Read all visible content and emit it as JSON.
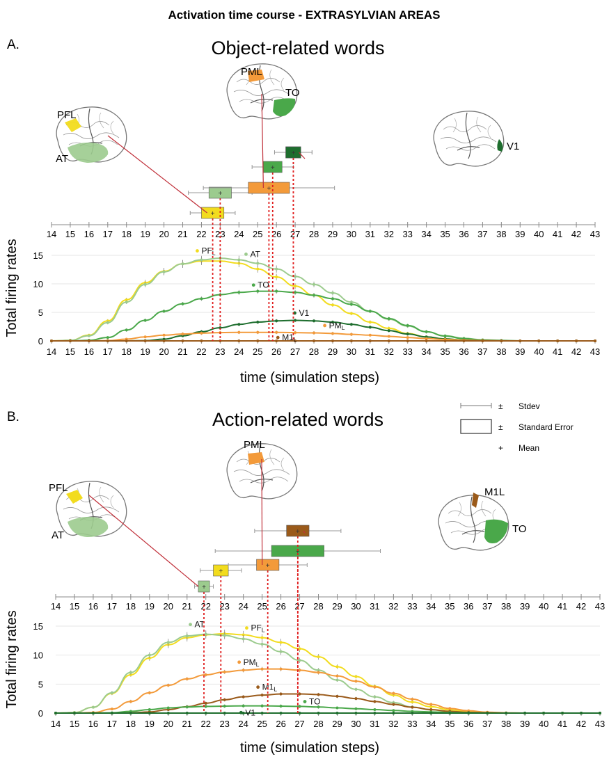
{
  "figure_title": "Activation time course - EXTRASYLVIAN AREAS",
  "colors": {
    "PF": "#f2dc1e",
    "AT": "#9ccb8e",
    "TO": "#4aa84a",
    "V1": "#1e6e2e",
    "PM": "#f39a3a",
    "M1": "#9a5a1a",
    "link": "#c0303a",
    "dotted": "#e02020"
  },
  "legend": {
    "stdev": "Stdev",
    "se": "Standard Error",
    "mean": "Mean",
    "pm": "±",
    "plus": "+"
  },
  "panels": [
    {
      "letter": "A.",
      "subtitle": "Object-related words",
      "ylabel": "Total firing rates",
      "xlabel": "time (simulation steps)",
      "brains": [
        {
          "label": "PFL",
          "area": "PF"
        },
        {
          "label": "AT",
          "area": "AT"
        },
        {
          "label": "PML",
          "area": "PM"
        },
        {
          "label": "TO",
          "area": "TO"
        },
        {
          "label": "V1",
          "area": "V1"
        }
      ],
      "curve_labels": [
        "PFL",
        "AT",
        "TO",
        "V1",
        "PML",
        "M1L"
      ]
    },
    {
      "letter": "B.",
      "subtitle": "Action-related words",
      "ylabel": "Total firing rates",
      "xlabel": "time (simulation steps)",
      "brains": [
        {
          "label": "PFL",
          "area": "PF"
        },
        {
          "label": "AT",
          "area": "AT"
        },
        {
          "label": "PML",
          "area": "PM"
        },
        {
          "label": "M1L",
          "area": "M1"
        },
        {
          "label": "TO",
          "area": "TO"
        }
      ],
      "curve_labels": [
        "AT",
        "PFL",
        "PML",
        "M1L",
        "TO",
        "V1"
      ]
    }
  ],
  "chart_data": [
    {
      "type": "line",
      "title": "Object-related words",
      "xlabel": "time (simulation steps)",
      "ylabel": "Total firing rates",
      "xlim": [
        14,
        43
      ],
      "ylim": [
        0,
        15
      ],
      "xticks": [
        14,
        15,
        16,
        17,
        18,
        19,
        20,
        21,
        22,
        23,
        24,
        25,
        26,
        27,
        28,
        29,
        30,
        31,
        32,
        33,
        34,
        35,
        36,
        37,
        38,
        39,
        40,
        41,
        42,
        43
      ],
      "yticks": [
        0,
        5,
        10,
        15
      ],
      "x": [
        14,
        15,
        16,
        17,
        18,
        19,
        20,
        21,
        22,
        23,
        24,
        25,
        26,
        27,
        28,
        29,
        30,
        31,
        32,
        33,
        34,
        35,
        36,
        37,
        38,
        39,
        40,
        41,
        42,
        43
      ],
      "series": [
        {
          "name": "PFL",
          "color": "#f2dc1e",
          "values": [
            0,
            0.1,
            1,
            3.5,
            7.2,
            10.2,
            12.2,
            13.5,
            14,
            14,
            13.6,
            12.6,
            11.2,
            9.6,
            8,
            6.3,
            4.8,
            3.3,
            2.2,
            1.3,
            0.7,
            0.35,
            0.15,
            0.05,
            0,
            0,
            0,
            0,
            0,
            0
          ]
        },
        {
          "name": "AT",
          "color": "#9ccb8e",
          "values": [
            0,
            0.1,
            0.9,
            3.2,
            6.8,
            9.9,
            12.1,
            13.5,
            14.2,
            14.5,
            14.2,
            13.6,
            12.6,
            11.3,
            9.9,
            8.4,
            6.8,
            5.2,
            3.8,
            2.6,
            1.6,
            0.9,
            0.45,
            0.2,
            0.1,
            0,
            0,
            0,
            0,
            0
          ]
        },
        {
          "name": "TO",
          "color": "#4aa84a",
          "values": [
            0,
            0,
            0.1,
            0.6,
            1.9,
            3.6,
            5.2,
            6.5,
            7.4,
            8.1,
            8.5,
            8.7,
            8.7,
            8.5,
            8,
            7.4,
            6.4,
            5.2,
            3.9,
            2.7,
            1.6,
            0.85,
            0.4,
            0.15,
            0.05,
            0,
            0,
            0,
            0,
            0
          ]
        },
        {
          "name": "V1",
          "color": "#1e6e2e",
          "values": [
            0,
            0,
            0,
            0,
            0,
            0.05,
            0.3,
            0.9,
            1.6,
            2.3,
            2.9,
            3.3,
            3.5,
            3.6,
            3.5,
            3.3,
            2.9,
            2.4,
            1.8,
            1.2,
            0.7,
            0.35,
            0.15,
            0.05,
            0,
            0,
            0,
            0,
            0,
            0
          ]
        },
        {
          "name": "PML",
          "color": "#f39a3a",
          "values": [
            0,
            0,
            0,
            0.05,
            0.3,
            0.7,
            1,
            1.2,
            1.35,
            1.45,
            1.5,
            1.5,
            1.5,
            1.45,
            1.4,
            1.3,
            1.15,
            1,
            0.8,
            0.6,
            0.4,
            0.25,
            0.12,
            0.05,
            0,
            0,
            0,
            0,
            0,
            0
          ]
        },
        {
          "name": "M1L",
          "color": "#9a5a1a",
          "values": [
            0,
            0,
            0,
            0,
            0,
            0,
            0,
            0,
            0,
            0,
            0,
            0,
            0,
            0,
            0,
            0,
            0,
            0,
            0,
            0,
            0,
            0,
            0,
            0,
            0,
            0,
            0,
            0,
            0,
            0
          ]
        }
      ],
      "peak_times": [
        {
          "area": "PFL",
          "color": "#f2dc1e",
          "mean": 22.6,
          "se": 0.6,
          "sd": 1.2,
          "level": 1
        },
        {
          "area": "AT",
          "color": "#9ccb8e",
          "mean": 23,
          "se": 0.6,
          "sd": 1.7,
          "level": 2
        },
        {
          "area": "PML",
          "color": "#f39a3a",
          "mean": 25.6,
          "se": 1.1,
          "sd": 3.5,
          "level": 2
        },
        {
          "area": "TO",
          "color": "#4aa84a",
          "mean": 25.8,
          "se": 0.5,
          "sd": 1.1,
          "level": 3
        },
        {
          "area": "V1",
          "color": "#1e6e2e",
          "mean": 26.9,
          "se": 0.4,
          "sd": 1
        },
        {
          "area": "V1",
          "color": "#1e6e2e",
          "mean": 26.9,
          "se": 0.4,
          "sd": 1,
          "level": 4
        }
      ]
    },
    {
      "type": "line",
      "title": "Action-related words",
      "xlabel": "time (simulation steps)",
      "ylabel": "Total firing rates",
      "xlim": [
        14,
        43
      ],
      "ylim": [
        0,
        15
      ],
      "xticks": [
        14,
        15,
        16,
        17,
        18,
        19,
        20,
        21,
        22,
        23,
        24,
        25,
        26,
        27,
        28,
        29,
        30,
        31,
        32,
        33,
        34,
        35,
        36,
        37,
        38,
        39,
        40,
        41,
        42,
        43
      ],
      "yticks": [
        0,
        5,
        10,
        15
      ],
      "x": [
        14,
        15,
        16,
        17,
        18,
        19,
        20,
        21,
        22,
        23,
        24,
        25,
        26,
        27,
        28,
        29,
        30,
        31,
        32,
        33,
        34,
        35,
        36,
        37,
        38,
        39,
        40,
        41,
        42,
        43
      ],
      "series": [
        {
          "name": "PFL",
          "color": "#f2dc1e",
          "values": [
            0,
            0.1,
            1,
            3.4,
            6.6,
            9.5,
            11.8,
            13,
            13.5,
            13.7,
            13.5,
            13,
            12.2,
            11.1,
            9.7,
            8,
            6.3,
            4.6,
            3.1,
            1.9,
            1.1,
            0.55,
            0.25,
            0.1,
            0,
            0,
            0,
            0,
            0,
            0
          ]
        },
        {
          "name": "AT",
          "color": "#9ccb8e",
          "values": [
            0,
            0.1,
            1,
            3.5,
            7,
            10,
            12.2,
            13.3,
            13.6,
            13.4,
            12.8,
            11.9,
            10.6,
            9.1,
            7.4,
            5.7,
            4.1,
            2.8,
            1.8,
            1.05,
            0.55,
            0.25,
            0.1,
            0.05,
            0,
            0,
            0,
            0,
            0,
            0
          ]
        },
        {
          "name": "PML",
          "color": "#f39a3a",
          "values": [
            0,
            0,
            0.1,
            0.7,
            2,
            3.5,
            4.8,
            5.9,
            6.6,
            7.1,
            7.4,
            7.6,
            7.6,
            7.4,
            7,
            6.4,
            5.5,
            4.5,
            3.4,
            2.4,
            1.5,
            0.8,
            0.4,
            0.15,
            0.05,
            0,
            0,
            0,
            0,
            0
          ]
        },
        {
          "name": "M1L",
          "color": "#9a5a1a",
          "values": [
            0,
            0,
            0,
            0,
            0.05,
            0.2,
            0.6,
            1.1,
            1.7,
            2.3,
            2.8,
            3.1,
            3.3,
            3.3,
            3.2,
            2.9,
            2.5,
            2,
            1.5,
            1,
            0.6,
            0.3,
            0.12,
            0.05,
            0,
            0,
            0,
            0,
            0,
            0
          ]
        },
        {
          "name": "TO",
          "color": "#4aa84a",
          "values": [
            0,
            0,
            0,
            0.05,
            0.3,
            0.6,
            0.9,
            1.05,
            1.15,
            1.2,
            1.25,
            1.25,
            1.2,
            1.15,
            1.05,
            0.9,
            0.75,
            0.6,
            0.45,
            0.3,
            0.2,
            0.1,
            0.05,
            0,
            0,
            0,
            0,
            0,
            0,
            0
          ]
        },
        {
          "name": "V1",
          "color": "#1e6e2e",
          "values": [
            0,
            0,
            0,
            0,
            0,
            0,
            0,
            0,
            0,
            0,
            0,
            0,
            0,
            0,
            0,
            0,
            0,
            0,
            0,
            0,
            0,
            0,
            0,
            0,
            0,
            0,
            0,
            0,
            0,
            0
          ]
        }
      ],
      "peak_times": [
        {
          "area": "AT",
          "color": "#9ccb8e",
          "mean": 21.9,
          "se": 0.3,
          "sd": 0.5,
          "level": 1
        },
        {
          "area": "PFL",
          "color": "#f2dc1e",
          "mean": 22.8,
          "se": 0.4,
          "sd": 1.1,
          "level": 2
        },
        {
          "area": "PML",
          "color": "#f39a3a",
          "mean": 25.3,
          "se": 0.6,
          "sd": 2.1,
          "level": 3
        },
        {
          "area": "TO",
          "color": "#4aa84a",
          "mean": 26.9,
          "se": 1.4,
          "sd": 4.4,
          "level": 4
        },
        {
          "area": "M1L",
          "color": "#9a5a1a",
          "mean": 26.9,
          "se": 0.6,
          "sd": 2.3,
          "level": 5
        }
      ]
    }
  ]
}
